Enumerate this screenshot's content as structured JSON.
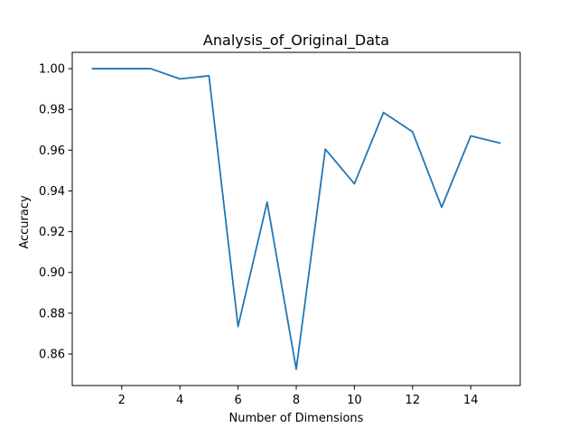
{
  "chart_data": {
    "type": "line",
    "title": "Analysis_of_Original_Data",
    "xlabel": "Number of Dimensions",
    "ylabel": "Accuracy",
    "xlim": [
      0.3,
      15.7
    ],
    "ylim": [
      0.8445,
      1.008
    ],
    "x_ticks": [
      2,
      4,
      6,
      8,
      10,
      12,
      14
    ],
    "x_tick_labels": [
      "2",
      "4",
      "6",
      "8",
      "10",
      "12",
      "14"
    ],
    "y_ticks": [
      0.86,
      0.88,
      0.9,
      0.92,
      0.94,
      0.96,
      0.98,
      1.0
    ],
    "y_tick_labels": [
      "0.86",
      "0.88",
      "0.90",
      "0.92",
      "0.94",
      "0.96",
      "0.98",
      "1.00"
    ],
    "grid": false,
    "series": [
      {
        "color": "#1f77b4",
        "x": [
          1,
          2,
          3,
          4,
          5,
          6,
          7,
          8,
          9,
          10,
          11,
          12,
          13,
          14,
          15
        ],
        "values": [
          1.0,
          1.0,
          1.0,
          0.995,
          0.9965,
          0.8735,
          0.9345,
          0.8525,
          0.9605,
          0.9435,
          0.9785,
          0.969,
          0.932,
          0.967,
          0.9635
        ]
      }
    ]
  }
}
